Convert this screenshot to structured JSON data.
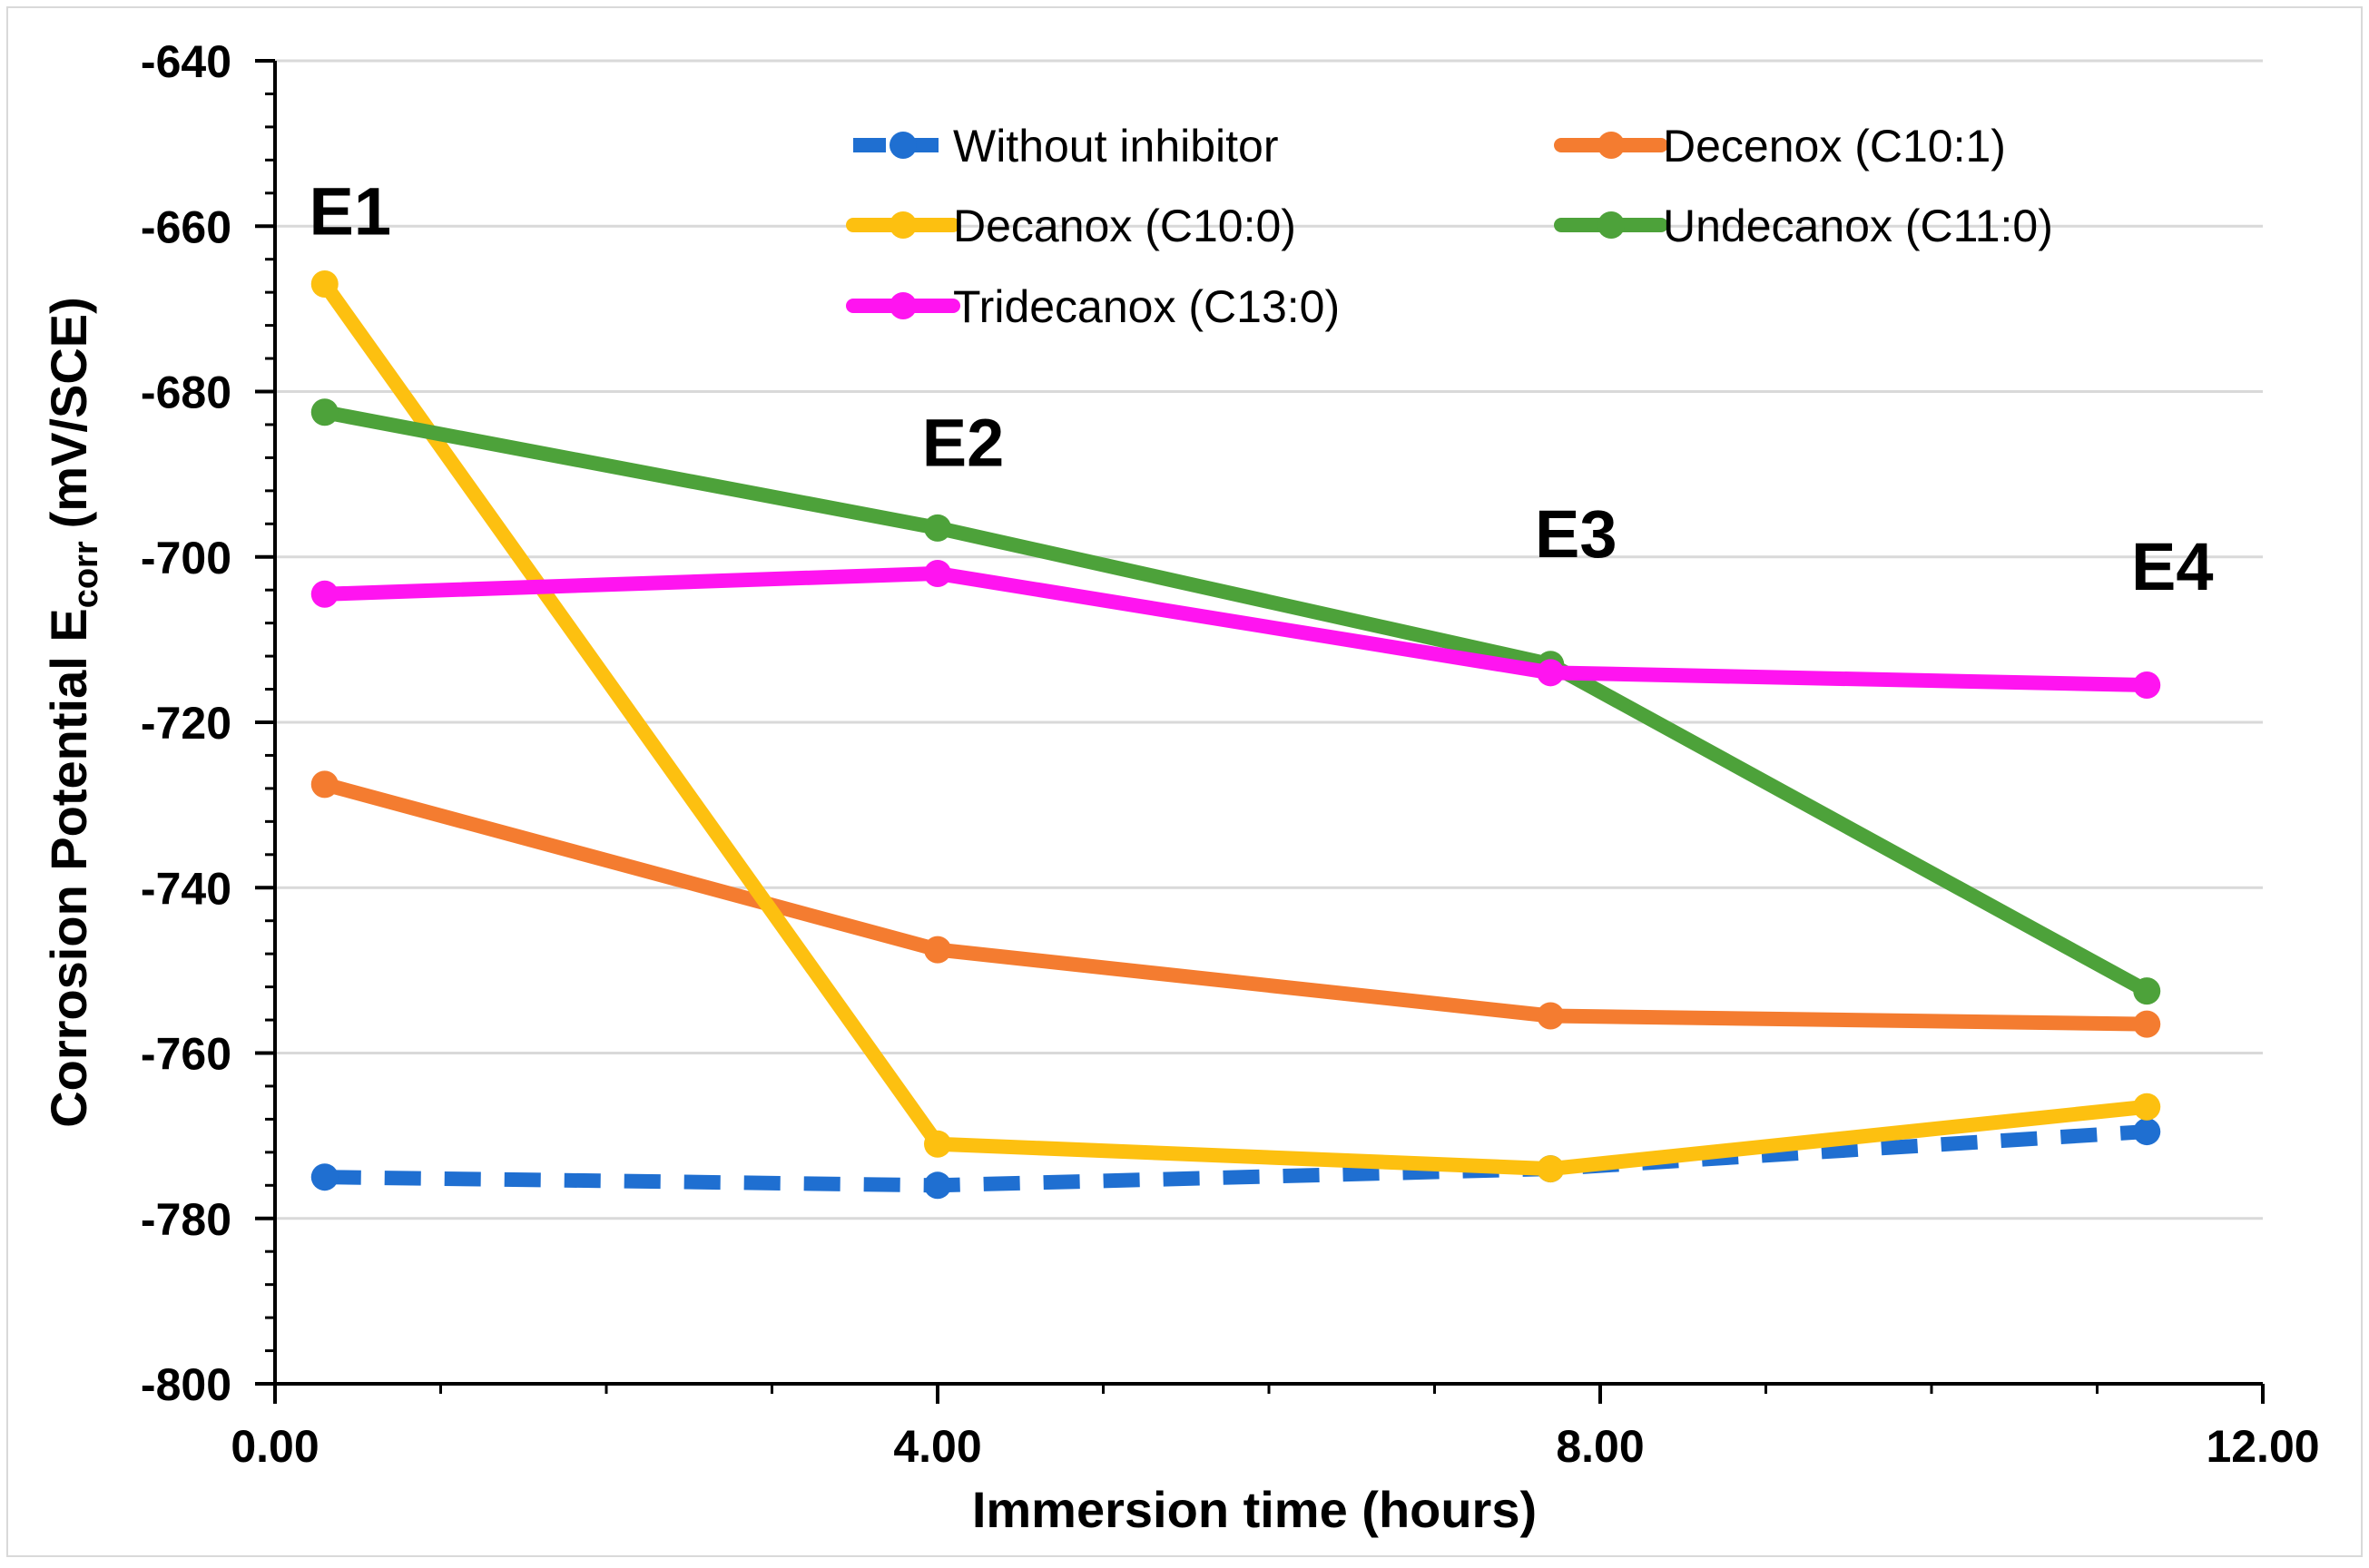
{
  "chart_data": {
    "type": "line",
    "title": "",
    "xlabel": "Immersion time (hours)",
    "ylabel_main": "Corrosion Potential E",
    "ylabel_sub": "corr",
    "ylabel_unit": "(mV/SCE)",
    "xlim": [
      0,
      12
    ],
    "ylim": [
      -800,
      -640
    ],
    "x_ticks": [
      0,
      4,
      8,
      12
    ],
    "x_tick_labels": [
      "0.00",
      "4.00",
      "8.00",
      "12.00"
    ],
    "y_ticks": [
      -640,
      -660,
      -680,
      -700,
      -720,
      -740,
      -760,
      -780,
      -800
    ],
    "y_tick_labels": [
      "-640",
      "-660",
      "-680",
      "-700",
      "-720",
      "-740",
      "-760",
      "-780",
      "-800"
    ],
    "grid": "horizontal",
    "legend_position": "top",
    "x": [
      0.3,
      4.0,
      7.7,
      11.3
    ],
    "series": [
      {
        "name": "Without inhibitor",
        "color": "#1f6fd1",
        "dashed": true,
        "values": [
          -775,
          -776,
          -774,
          -769.5
        ]
      },
      {
        "name": "Decenox (C10:1)",
        "color": "#f47c30",
        "dashed": false,
        "values": [
          -727.5,
          -747.5,
          -755.5,
          -756.5
        ]
      },
      {
        "name": "Decanox (C10:0)",
        "color": "#fdc010",
        "dashed": false,
        "values": [
          -667,
          -771,
          -774,
          -766.5
        ]
      },
      {
        "name": "Undecanox (C11:0)",
        "color": "#4da23a",
        "dashed": false,
        "values": [
          -682.5,
          -696.5,
          -713,
          -752.5
        ]
      },
      {
        "name": "Tridecanox (C13:0)",
        "color": "#ff14f0",
        "dashed": false,
        "values": [
          -704.5,
          -702,
          -714,
          -715.5
        ]
      }
    ],
    "annotations": [
      {
        "text": "E1",
        "x": 0.3,
        "y": -661
      },
      {
        "text": "E2",
        "x": 4.0,
        "y": -689
      },
      {
        "text": "E3",
        "x": 7.7,
        "y": -700
      },
      {
        "text": "E4",
        "x": 11.3,
        "y": -704
      }
    ]
  }
}
